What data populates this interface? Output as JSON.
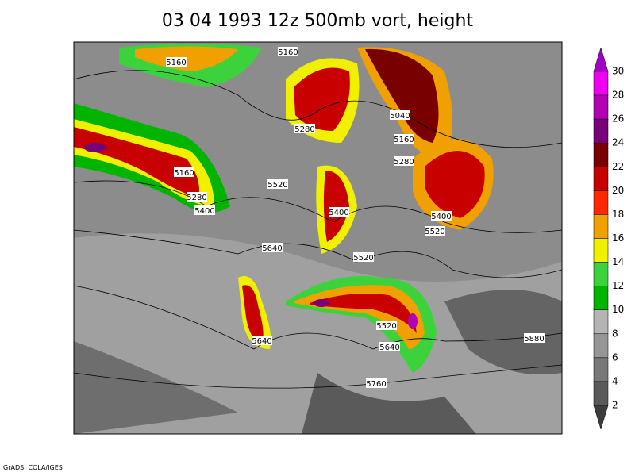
{
  "title": "03 04 1993 12z 500mb vort, height",
  "contour_labels": [
    5160,
    5160,
    5280,
    5040,
    5160,
    5280,
    5160,
    5280,
    5400,
    5520,
    5400,
    5400,
    5520,
    5640,
    5520,
    5520,
    5640,
    5640,
    5880,
    5760
  ],
  "colorbar": {
    "labels": [
      30,
      28,
      26,
      24,
      22,
      20,
      18,
      16,
      14,
      12,
      10,
      8,
      6,
      4,
      2
    ],
    "colors": [
      "#a000c8",
      "#f000f0",
      "#b400b4",
      "#780078",
      "#780000",
      "#c80000",
      "#ff2800",
      "#f0a000",
      "#f0f000",
      "#3cd23c",
      "#00b400",
      "#b4b4b4",
      "#969696",
      "#787878",
      "#5a5a5a",
      "#3c3c3c"
    ]
  },
  "footer": "GrADS: COLA/IGES"
}
